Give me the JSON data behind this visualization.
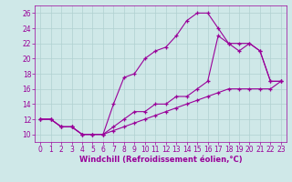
{
  "xlabel": "Windchill (Refroidissement éolien,°C)",
  "xlim": [
    -0.5,
    23.5
  ],
  "ylim": [
    9,
    27
  ],
  "xticks": [
    0,
    1,
    2,
    3,
    4,
    5,
    6,
    7,
    8,
    9,
    10,
    11,
    12,
    13,
    14,
    15,
    16,
    17,
    18,
    19,
    20,
    21,
    22,
    23
  ],
  "yticks": [
    10,
    12,
    14,
    16,
    18,
    20,
    22,
    24,
    26
  ],
  "background_color": "#cfe8e8",
  "line_color": "#990099",
  "grid_color": "#b0d0d0",
  "line1_x": [
    0,
    1,
    2,
    3,
    4,
    5,
    6,
    7,
    8,
    9,
    10,
    11,
    12,
    13,
    14,
    15,
    16,
    17,
    18,
    19,
    20,
    21,
    22,
    23
  ],
  "line1_y": [
    12,
    12,
    11,
    11,
    10,
    10,
    10,
    14,
    17.5,
    18,
    20,
    21,
    21.5,
    23,
    25,
    26,
    26,
    24,
    22,
    21,
    22,
    21,
    17,
    17
  ],
  "line2_x": [
    0,
    1,
    2,
    3,
    4,
    5,
    6,
    7,
    8,
    9,
    10,
    11,
    12,
    13,
    14,
    15,
    16,
    17,
    18,
    19,
    20,
    21,
    22,
    23
  ],
  "line2_y": [
    12,
    12,
    11,
    11,
    10,
    10,
    10,
    11,
    12,
    13,
    13,
    14,
    14,
    15,
    15,
    16,
    17,
    23,
    22,
    22,
    22,
    21,
    17,
    17
  ],
  "line3_x": [
    0,
    1,
    2,
    3,
    4,
    5,
    6,
    7,
    8,
    9,
    10,
    11,
    12,
    13,
    14,
    15,
    16,
    17,
    18,
    19,
    20,
    21,
    22,
    23
  ],
  "line3_y": [
    12,
    12,
    11,
    11,
    10,
    10,
    10,
    10.5,
    11,
    11.5,
    12,
    12.5,
    13,
    13.5,
    14,
    14.5,
    15,
    15.5,
    16,
    16,
    16,
    16,
    16,
    17
  ],
  "tick_fontsize": 5.5,
  "xlabel_fontsize": 6,
  "figure_width": 3.2,
  "figure_height": 2.0,
  "dpi": 100
}
